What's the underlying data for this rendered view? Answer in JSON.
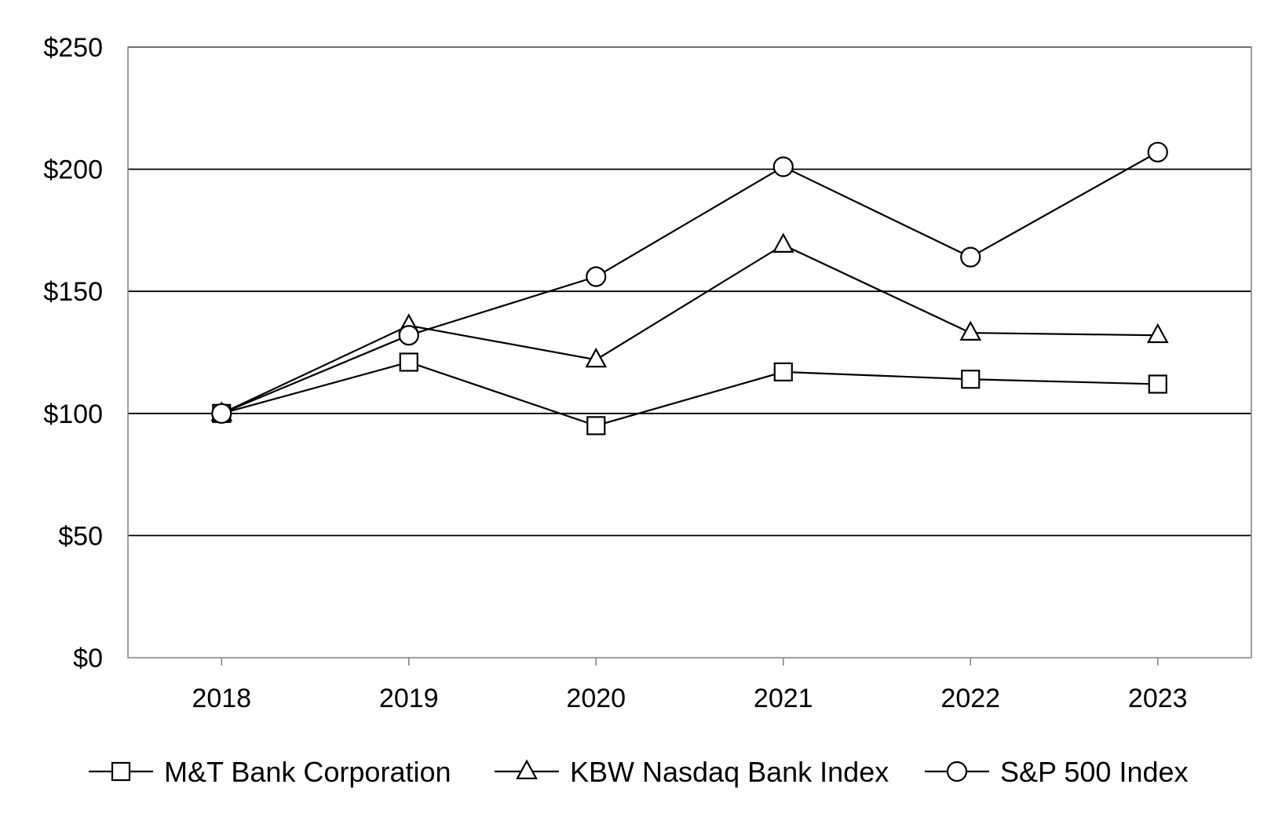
{
  "chart_data": {
    "type": "line",
    "title": "",
    "xlabel": "",
    "ylabel": "",
    "categories": [
      "2018",
      "2019",
      "2020",
      "2021",
      "2022",
      "2023"
    ],
    "ylim": [
      0,
      250
    ],
    "y_ticks": [
      0,
      50,
      100,
      150,
      200,
      250
    ],
    "y_tick_labels": [
      "$0",
      "$50",
      "$100",
      "$150",
      "$200",
      "$250"
    ],
    "grid": "horizontal",
    "legend_position": "bottom",
    "series": [
      {
        "name": "M&T Bank Corporation",
        "marker": "square",
        "values": [
          100,
          121,
          95,
          117,
          114,
          112
        ]
      },
      {
        "name": "KBW Nasdaq Bank Index",
        "marker": "triangle",
        "values": [
          100,
          136,
          122,
          169,
          133,
          132
        ]
      },
      {
        "name": "S&P 500 Index",
        "marker": "circle",
        "values": [
          100,
          132,
          156,
          201,
          164,
          207
        ]
      }
    ],
    "colors": {
      "line": "#000000",
      "marker_fill": "#ffffff",
      "grid": "#000000",
      "background": "#ffffff"
    }
  }
}
